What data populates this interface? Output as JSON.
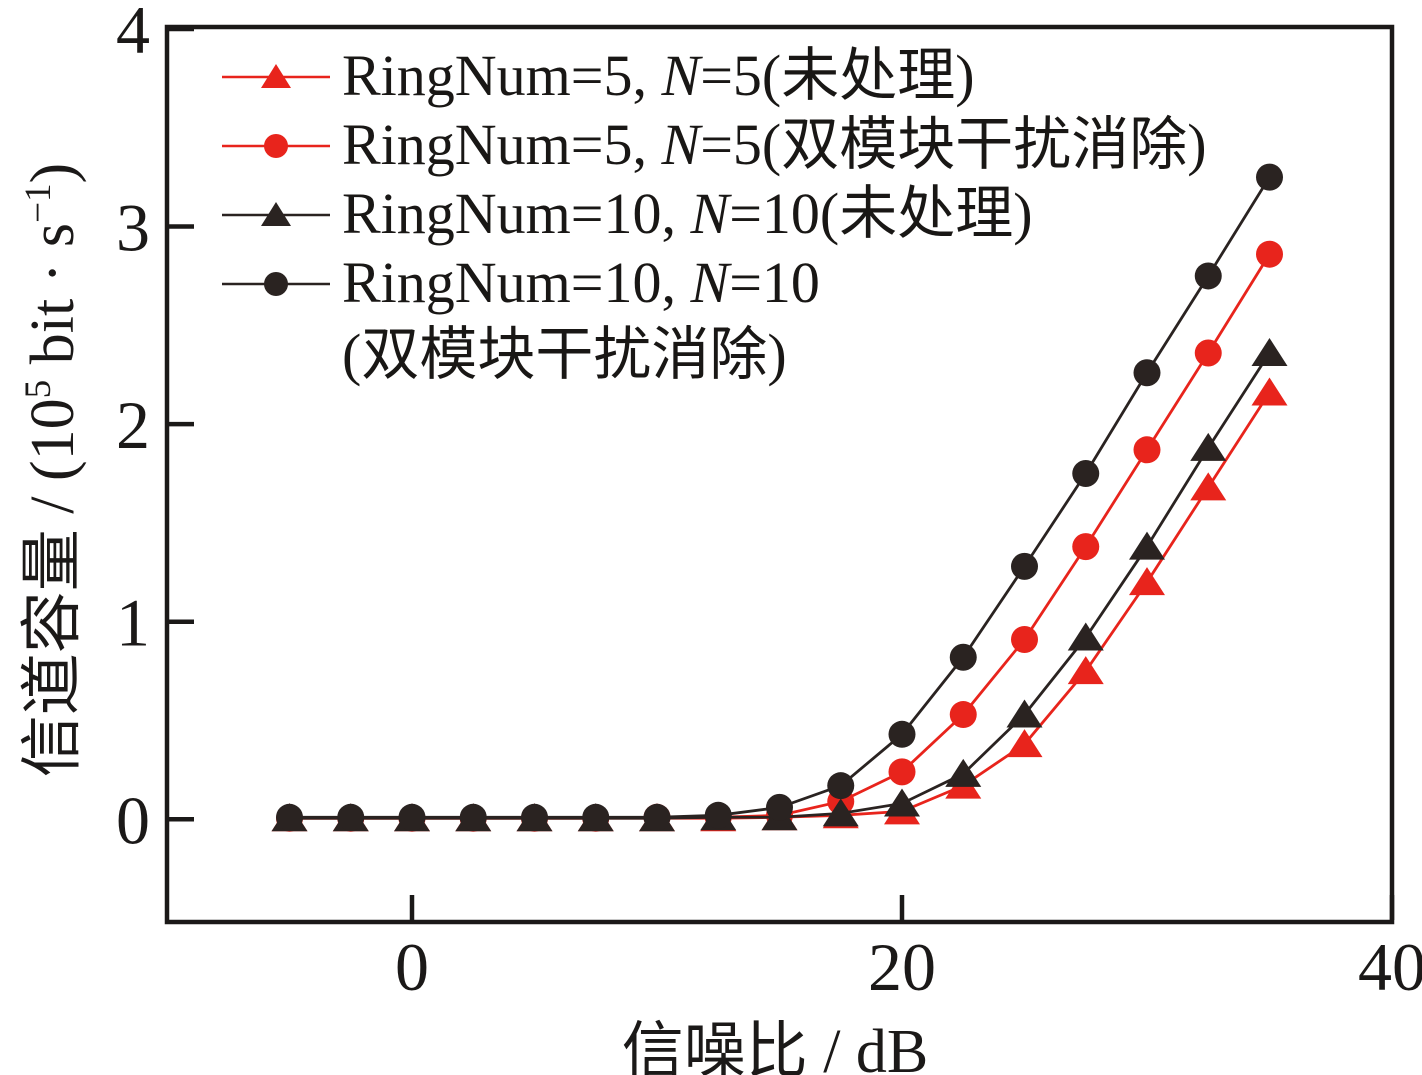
{
  "chart_data": {
    "type": "line",
    "title": "",
    "xlabel": "信噪比 / dB",
    "ylabel": "信道容量 / (10^5 bit · s^-1)",
    "ylabel_parts": [
      {
        "text": "信道容量 / (10"
      },
      {
        "text": "5",
        "sup": true
      },
      {
        "text": " bit · s"
      },
      {
        "text": "−1",
        "sup": true
      },
      {
        "text": ")"
      }
    ],
    "xlim": [
      -10,
      40
    ],
    "ylim": [
      -0.52,
      4.01
    ],
    "grid": false,
    "legend_position": "top-left",
    "axis_color": "#1b1918",
    "x_ticks": [
      {
        "value": 0,
        "label": "0"
      },
      {
        "value": 20,
        "label": "20"
      },
      {
        "value": 40,
        "label": "40"
      }
    ],
    "y_ticks": [
      {
        "value": 0,
        "label": "0"
      },
      {
        "value": 1,
        "label": "1"
      },
      {
        "value": 2,
        "label": "2"
      },
      {
        "value": 3,
        "label": "3"
      },
      {
        "value": 4,
        "label": "4"
      }
    ],
    "x": [
      -5,
      -2.5,
      0,
      2.5,
      5,
      7.5,
      10,
      12.5,
      15,
      17.5,
      20,
      22.5,
      25,
      27.5,
      30,
      32.5,
      35
    ],
    "series": [
      {
        "label": "RingNum=5, N=5(未处理)",
        "marker": "triangle",
        "color": "#e8241c",
        "values": [
          0.005,
          0.005,
          0.005,
          0.005,
          0.005,
          0.005,
          0.005,
          0.005,
          0.01,
          0.02,
          0.04,
          0.17,
          0.38,
          0.75,
          1.2,
          1.68,
          2.16
        ]
      },
      {
        "label": "RingNum=5, N=5(双模块干扰消除)",
        "marker": "circle",
        "color": "#e8241c",
        "values": [
          0.005,
          0.005,
          0.005,
          0.005,
          0.005,
          0.005,
          0.01,
          0.01,
          0.02,
          0.09,
          0.24,
          0.53,
          0.91,
          1.38,
          1.87,
          2.36,
          2.86
        ]
      },
      {
        "label": "RingNum=10, N=10(未处理)",
        "marker": "triangle",
        "color": "#2a2321",
        "values": [
          0.005,
          0.005,
          0.005,
          0.005,
          0.005,
          0.005,
          0.005,
          0.01,
          0.01,
          0.03,
          0.08,
          0.23,
          0.53,
          0.92,
          1.38,
          1.88,
          2.36
        ]
      },
      {
        "label": "RingNum=10, N=10",
        "label_line2": "(双模块干扰消除)",
        "marker": "circle",
        "color": "#2a2321",
        "values": [
          0.01,
          0.01,
          0.01,
          0.01,
          0.01,
          0.01,
          0.01,
          0.02,
          0.06,
          0.17,
          0.43,
          0.82,
          1.28,
          1.75,
          2.26,
          2.75,
          3.25
        ]
      }
    ]
  }
}
